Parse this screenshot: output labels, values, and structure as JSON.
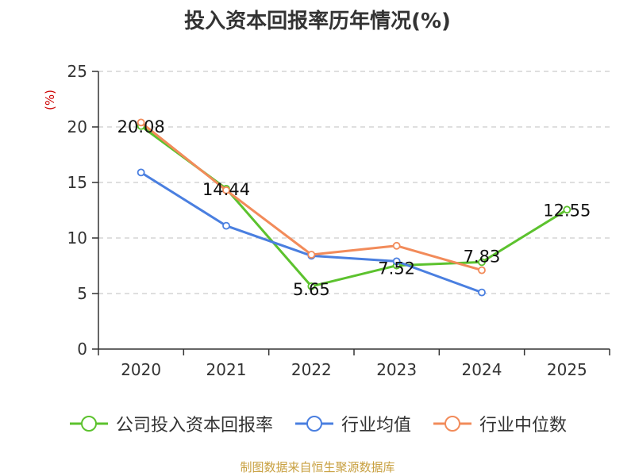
{
  "chart_data": {
    "type": "line",
    "title": "投入资本回报率历年情况(%)",
    "ylabel": "(%)",
    "ylim": [
      0,
      25
    ],
    "yticks": [
      0,
      5,
      10,
      15,
      20,
      25
    ],
    "grid": "horizontal-dashed",
    "categories": [
      "2020",
      "2021",
      "2022",
      "2023",
      "2024",
      "2025"
    ],
    "series": [
      {
        "name": "公司投入资本回报率",
        "color": "#5cc22e",
        "values": [
          20.08,
          14.44,
          5.65,
          7.52,
          7.83,
          12.55
        ],
        "labels": [
          "20.08",
          "14.44",
          "5.65",
          "7.52",
          "7.83",
          "12.55"
        ]
      },
      {
        "name": "行业均值",
        "color": "#4a7fe0",
        "values": [
          15.9,
          11.1,
          8.4,
          7.9,
          5.1,
          null
        ]
      },
      {
        "name": "行业中位数",
        "color": "#f28b5a",
        "values": [
          20.4,
          14.3,
          8.5,
          9.3,
          7.1,
          null
        ]
      }
    ],
    "legend_position": "bottom"
  },
  "source": "制图数据来自恒生聚源数据库"
}
